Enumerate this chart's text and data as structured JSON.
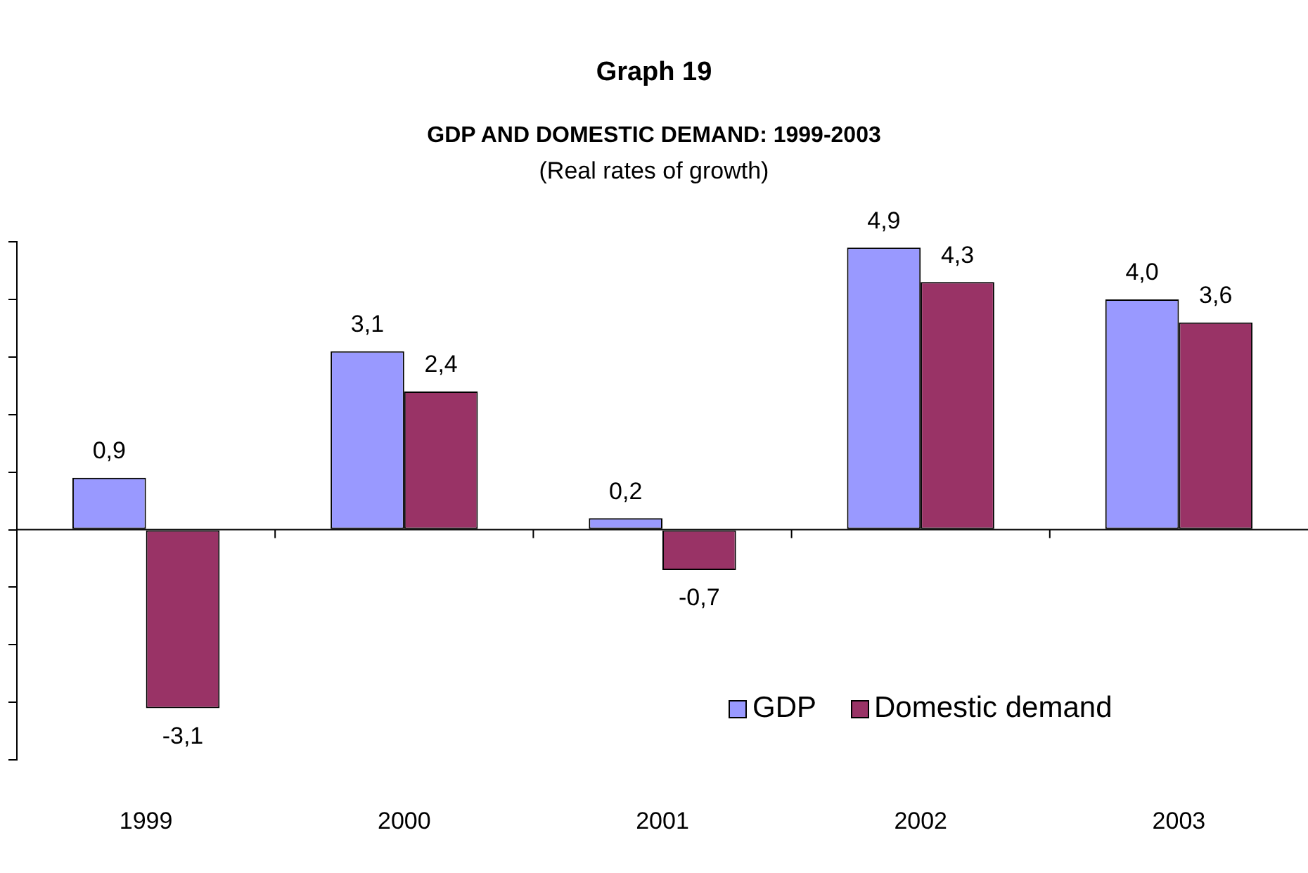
{
  "chart_data": {
    "type": "bar",
    "title": "Graph 19",
    "subtitle": "GDP AND DOMESTIC DEMAND: 1999-2003",
    "annotations": [
      "(Real rates of growth)"
    ],
    "categories": [
      "1999",
      "2000",
      "2001",
      "2002",
      "2003"
    ],
    "series": [
      {
        "name": "GDP",
        "color": "#9999ff",
        "values": [
          0.9,
          3.1,
          0.2,
          4.9,
          4.0
        ],
        "value_labels": [
          "0,9",
          "3,1",
          "0,2",
          "4,9",
          "4,0"
        ]
      },
      {
        "name": "Domestic demand",
        "color": "#993366",
        "values": [
          -3.1,
          2.4,
          -0.7,
          4.3,
          3.6
        ],
        "value_labels": [
          "-3,1",
          "2,4",
          "-0,7",
          "4,3",
          "3,6"
        ]
      }
    ],
    "tick_labels": "x",
    "grid": false,
    "legend": "bottom right"
  }
}
